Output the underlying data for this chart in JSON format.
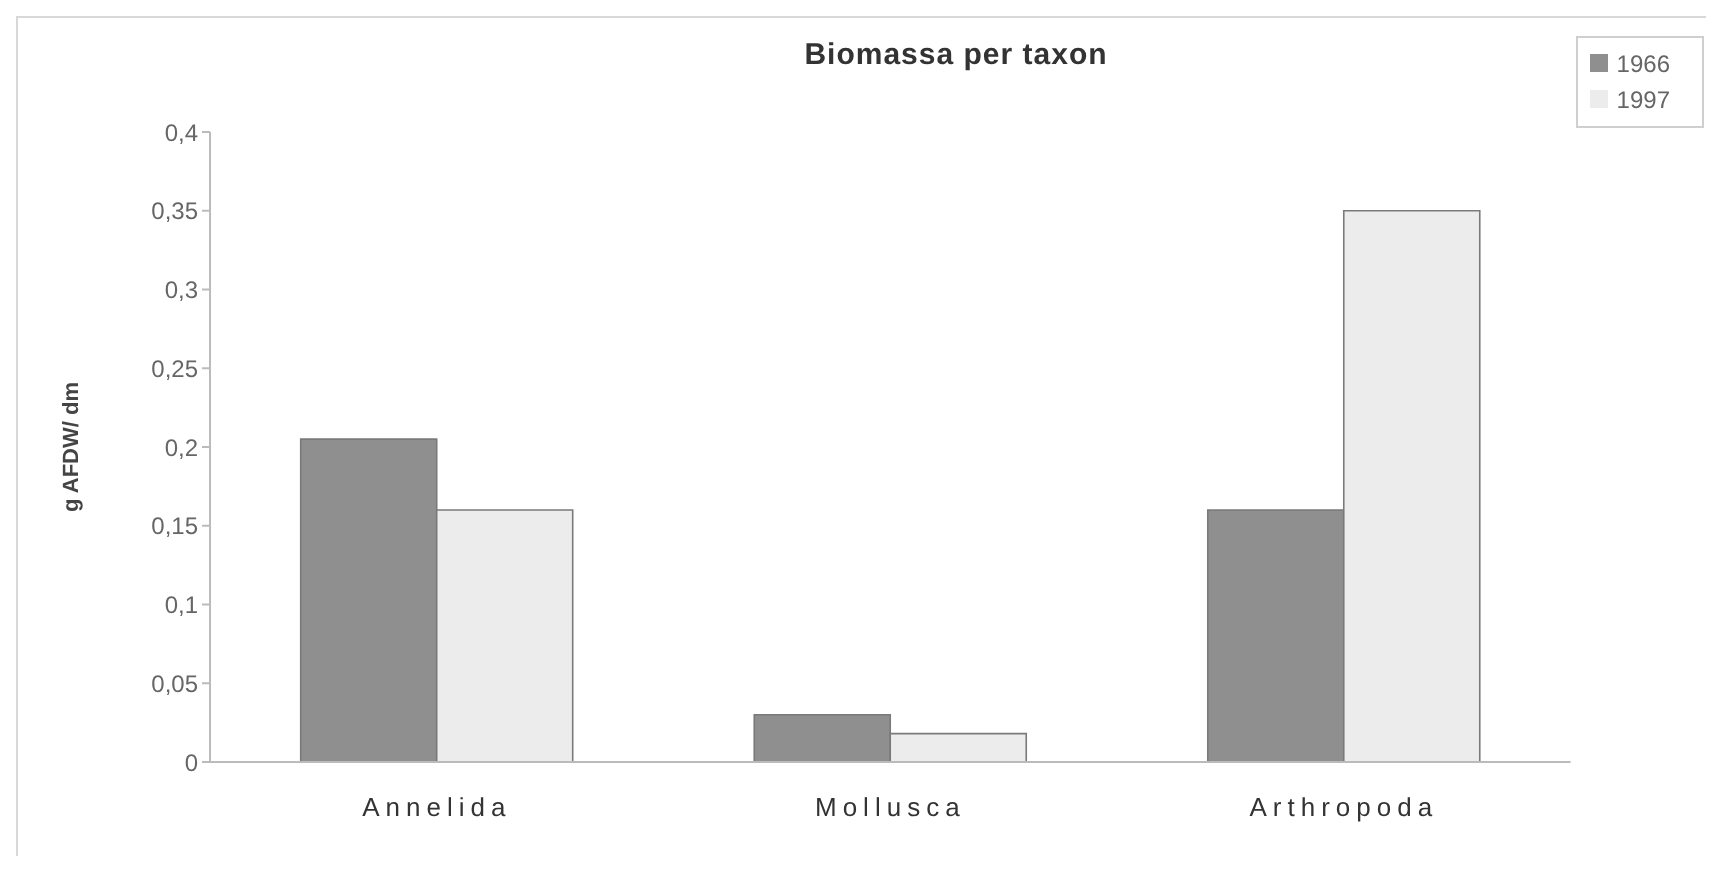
{
  "chart_data": {
    "type": "bar",
    "title": "Biomassa per taxon",
    "ylabel": "g AFDW/ dm",
    "categories": [
      "Annelida",
      "Mollusca",
      "Arthropoda"
    ],
    "series": [
      {
        "name": "1966",
        "color": "#8f8f8f",
        "values": [
          0.205,
          0.03,
          0.16
        ]
      },
      {
        "name": "1997",
        "color": "#ececec",
        "values": [
          0.16,
          0.018,
          0.35
        ]
      }
    ],
    "ylim": [
      0,
      0.4
    ],
    "yticks": [
      0,
      {
        "value": 0.05,
        "label": "0,05"
      },
      {
        "value": 0.1,
        "label": "0,1"
      },
      {
        "value": 0.15,
        "label": "0,15"
      },
      {
        "value": 0.2,
        "label": "0,2"
      },
      {
        "value": 0.25,
        "label": "0,25"
      },
      {
        "value": 0.3,
        "label": "0,3"
      },
      {
        "value": 0.35,
        "label": "0,35"
      },
      {
        "value": 0.4,
        "label": "0,4"
      }
    ],
    "legend": "top right"
  }
}
